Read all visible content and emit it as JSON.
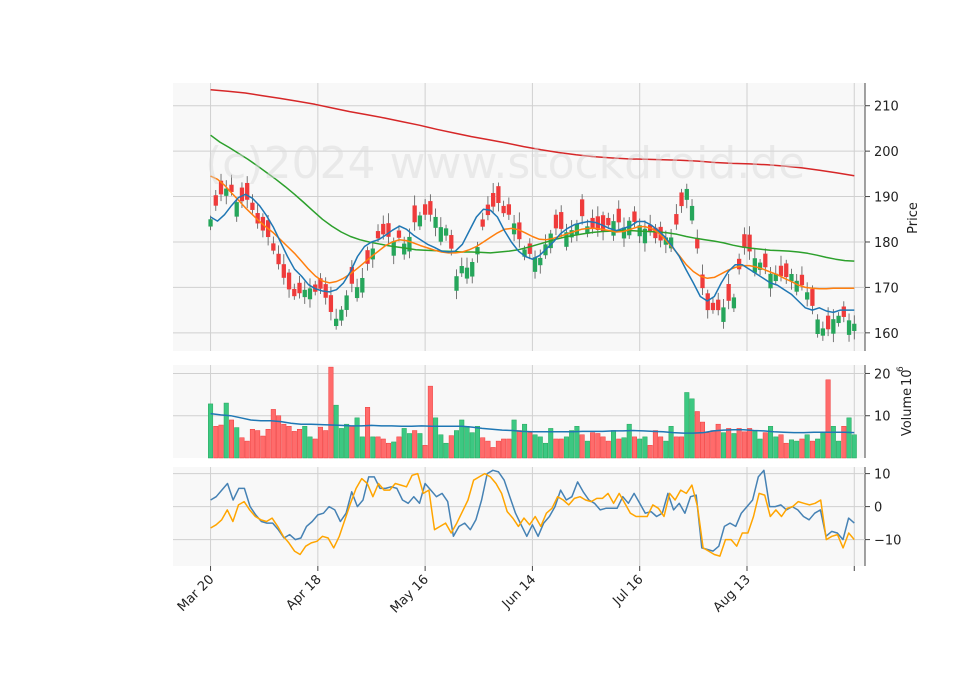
{
  "watermark": "(c)2024 www.stockdroid.de",
  "colors": {
    "up": "#26a65b",
    "down": "#ef3b3b",
    "up_fill": "#3cc882",
    "down_fill": "#ff6b6b",
    "ma_short": "#1f77b4",
    "ma_mid": "#ff7f0e",
    "ma_long": "#2ca02c",
    "ma_200": "#d62728",
    "vol_ma": "#1f77b4",
    "osc_fast": "#4682b4",
    "osc_slow": "#ffa500",
    "panel_bg": "#f8f8f8",
    "grid": "#d0d0d0"
  },
  "chart_data": [
    {
      "type": "candlestick",
      "panel": "price",
      "ylabel": "Price",
      "ylim": [
        156,
        215
      ],
      "yticks": [
        160,
        170,
        180,
        190,
        200,
        210
      ],
      "x_tick_labels": [
        "Mar 20",
        "Apr 18",
        "May 16",
        "Jun 14",
        "Jul 16",
        "Aug 13"
      ],
      "x_tick_index": [
        0,
        20,
        40,
        60,
        80,
        100
      ],
      "x_range": [
        -7,
        122
      ],
      "close_path": [
        185,
        189,
        192,
        191,
        188,
        190,
        187,
        183,
        182,
        178,
        174,
        170,
        168,
        169,
        170,
        169,
        170,
        165,
        163,
        166,
        171,
        170,
        173,
        178,
        181,
        182,
        180,
        181,
        179,
        184,
        186,
        186,
        186,
        183,
        183,
        172,
        175,
        174,
        178,
        184,
        187,
        189,
        186,
        186,
        181,
        178,
        177,
        176,
        180,
        183,
        183,
        182,
        183,
        186,
        183,
        183,
        182,
        184,
        185,
        183,
        185,
        184,
        183,
        182,
        180,
        181,
        181,
        186,
        192,
        187,
        172,
        165,
        165,
        165,
        167,
        168,
        179,
        178,
        176,
        175,
        173,
        173,
        172,
        173,
        171,
        170,
        166,
        162,
        160,
        163,
        164,
        163,
        162
      ],
      "ma_short": [
        185.5,
        184.6,
        186,
        188,
        189.8,
        190.5,
        189.6,
        188,
        185.8,
        183.2,
        180,
        176.8,
        174,
        172.5,
        170.6,
        169.7,
        169.2,
        169,
        169.5,
        171,
        173.5,
        176.8,
        179,
        180,
        180.5,
        181.5,
        182.6,
        183.5,
        182.8,
        181.5,
        180.5,
        179.5,
        178.8,
        178,
        177.8,
        178,
        179.5,
        182.5,
        185.5,
        187.2,
        187,
        185.5,
        182.5,
        180,
        178,
        176.8,
        176.2,
        177,
        178.5,
        180,
        181.8,
        183,
        183.8,
        184.2,
        184.5,
        184.3,
        183.7,
        183,
        182.5,
        183,
        183.5,
        184.5,
        184.5,
        183.7,
        182.5,
        181,
        179,
        176.8,
        173.8,
        171,
        168,
        167,
        168,
        171,
        173.5,
        175,
        175,
        174,
        173,
        172,
        171,
        170.5,
        169.5,
        168.5,
        167,
        165.5,
        165,
        165.5,
        164.8,
        164.5,
        165,
        165,
        165
      ],
      "ma_mid": [
        194.5,
        193.8,
        192.5,
        190.8,
        189.2,
        187.5,
        186,
        184.5,
        183.2,
        182,
        180.5,
        179,
        177.5,
        175.8,
        174,
        172.5,
        171.4,
        171,
        171.3,
        172,
        173,
        174.2,
        175.5,
        176.8,
        178,
        179.2,
        180,
        180.5,
        180.3,
        179.8,
        179.2,
        178.7,
        178.2,
        177.8,
        177.6,
        177.6,
        177.8,
        178.3,
        179,
        180,
        181,
        182,
        182.8,
        183,
        182.7,
        182,
        181.2,
        180.6,
        180.5,
        180.8,
        181.3,
        181.8,
        182.3,
        182.8,
        183,
        183,
        182.8,
        182.5,
        182.2,
        182.3,
        182.8,
        183.3,
        183.4,
        183,
        182,
        180.5,
        178.8,
        177,
        175,
        173.5,
        172.5,
        172,
        172.2,
        173,
        173.8,
        174.4,
        174.8,
        174.8,
        174.5,
        174,
        173.4,
        172.8,
        172,
        171.3,
        170.5,
        170,
        169.8,
        169.7,
        169.7,
        169.8,
        169.8,
        169.8,
        169.8
      ],
      "ma_long": [
        203.5,
        202,
        200.8,
        199.5,
        198.2,
        196.8,
        195.3,
        193.8,
        192.2,
        190.5,
        188.7,
        186.8,
        185,
        183.5,
        182.2,
        181.2,
        180.5,
        180,
        179.6,
        179.2,
        178.9,
        178.6,
        178.3,
        178.2,
        178.1,
        178,
        177.9,
        177.8,
        177.8,
        177.7,
        177.6,
        177.8,
        178,
        178.3,
        178.8,
        179.4,
        180,
        180.6,
        181.1,
        181.5,
        181.8,
        182.1,
        182.3,
        182.4,
        182.5,
        182.5,
        182.4,
        182.3,
        182.2,
        182,
        181.7,
        181.2,
        180.8,
        180.5,
        180.2,
        179.8,
        179.3,
        178.9,
        178.6,
        178.4,
        178.2,
        178.1,
        178,
        177.8,
        177.5,
        177.1,
        176.6,
        176.2,
        175.9,
        175.8
      ],
      "ma_200": [
        213.5,
        213.2,
        212.8,
        212.2,
        211.6,
        211,
        210.3,
        209.5,
        208.7,
        208,
        207.3,
        206.5,
        205.7,
        204.8,
        204,
        203.2,
        202.5,
        201.8,
        201,
        200.3,
        199.7,
        199.2,
        198.8,
        198.5,
        198.3,
        198.2,
        198.1,
        198,
        197.8,
        197.5,
        197.3,
        197.2,
        197,
        196.7,
        196.3,
        195.8,
        195.2,
        194.6
      ]
    },
    {
      "type": "bar",
      "panel": "volume",
      "ylabel": "Volume",
      "ylabel_exponent": "10^6",
      "ylim": [
        0,
        22
      ],
      "yticks": [
        10,
        20
      ],
      "values": [
        12.8,
        7.5,
        7.8,
        13,
        9,
        7.2,
        4.8,
        4,
        6.8,
        6.5,
        5.2,
        6.8,
        11.5,
        10,
        8,
        7.5,
        6.3,
        6.8,
        7.5,
        5,
        4.5,
        7.3,
        6.5,
        21.5,
        12.5,
        7,
        8,
        7.5,
        9.5,
        5,
        12,
        5,
        5,
        4.5,
        3.5,
        3.8,
        5,
        7,
        5.8,
        6.5,
        5.8,
        3,
        17,
        9.5,
        5.5,
        3.5,
        5.3,
        6.5,
        9,
        7.5,
        6,
        7.5,
        4.8,
        4,
        2.5,
        4,
        4.5,
        4.5,
        9,
        6.5,
        8,
        6,
        5.5,
        5,
        3.5,
        7,
        4.5,
        4.5,
        5,
        6.5,
        7.5,
        5.5,
        4,
        6,
        5.8,
        5,
        4,
        6.5,
        4.5,
        4.8,
        8,
        5,
        4.5,
        5,
        3,
        6.5,
        5,
        4,
        7.5,
        5,
        5,
        15.5,
        14,
        11,
        8.5,
        6,
        6.5,
        8,
        6,
        7,
        5.8,
        7,
        6.2,
        7,
        6.5,
        4.5,
        6,
        7.5,
        5,
        5.5,
        3.5,
        4.3,
        4,
        4.5,
        5.5,
        4,
        4.5,
        6,
        18.5,
        7.5,
        4,
        7.5,
        9.5,
        5.5
      ],
      "direction": [
        1,
        0,
        0,
        1,
        0,
        1,
        0,
        0,
        0,
        0,
        0,
        0,
        0,
        0,
        0,
        0,
        0,
        0,
        1,
        1,
        0,
        0,
        0,
        0,
        1,
        1,
        1,
        0,
        1,
        1,
        0,
        1,
        0,
        0,
        0,
        1,
        0,
        1,
        1,
        0,
        1,
        0,
        0,
        1,
        1,
        1,
        0,
        1,
        1,
        1,
        1,
        1,
        0,
        0,
        0,
        0,
        0,
        0,
        1,
        0,
        1,
        0,
        1,
        1,
        1,
        1,
        0,
        0,
        1,
        1,
        1,
        0,
        1,
        0,
        0,
        0,
        0,
        1,
        0,
        1,
        1,
        0,
        1,
        1,
        0,
        0,
        0,
        1,
        1,
        0,
        0,
        1,
        1,
        0,
        0,
        0,
        0,
        0,
        1,
        0,
        1,
        0,
        0,
        0,
        1,
        1,
        0,
        1,
        1,
        0,
        0,
        1,
        1,
        0,
        1,
        0,
        1,
        1,
        0,
        1,
        1,
        0,
        1,
        1
      ],
      "ma": [
        10.5,
        10.2,
        10,
        9.5,
        9,
        8.8,
        8.8,
        8.6,
        8.2,
        8,
        8,
        7.9,
        7.8,
        7.7,
        7.6,
        7.6,
        7.7,
        7.6,
        7.6,
        7.5,
        7.5,
        7.6,
        7.5,
        7.5,
        7.5,
        7.5,
        7.3,
        7,
        6.8,
        6.6,
        6.5,
        6.3,
        6.2,
        6.2,
        6.2,
        6.2,
        6.2,
        6.3,
        6.3,
        6.3,
        6.4,
        6.4,
        6.5,
        6.4,
        6.3,
        6.2,
        6,
        5.9,
        5.9,
        6,
        6.4,
        6.6,
        6.7,
        6.7,
        6.5,
        6.4,
        6.2,
        6.1,
        6,
        6,
        6.1,
        6.1,
        6.1,
        6.1,
        6
      ]
    },
    {
      "type": "line",
      "panel": "oscillator",
      "ylim": [
        -18,
        12
      ],
      "yticks": [
        -10,
        0,
        10
      ],
      "series": [
        {
          "values": [
            2,
            3,
            5,
            7,
            2,
            5.5,
            5.5,
            0,
            -2.5,
            -4.5,
            -5,
            -5,
            -7,
            -9.5,
            -8.5,
            -10,
            -9.5,
            -6,
            -4.5,
            -2.5,
            -2,
            0,
            -1,
            -4.5,
            -2,
            4.5,
            0,
            2,
            9,
            9,
            5.5,
            5.5,
            6,
            5.5,
            2,
            1,
            3,
            1,
            7,
            5,
            3,
            4,
            1.5,
            -9,
            -6,
            -5,
            -7,
            -4,
            2,
            10,
            11,
            10.5,
            8,
            3,
            -2,
            -5.5,
            -9,
            -5.5,
            -9,
            -5,
            -3,
            0,
            5,
            2,
            3,
            7.5,
            4.5,
            2,
            1,
            -1,
            -0.5,
            -0.5,
            -0.5,
            3,
            1,
            4,
            1,
            -2,
            -1.5,
            -3,
            -2,
            4,
            -1,
            1,
            -2,
            3,
            3.5,
            -12.5,
            -13,
            -13.5,
            -12,
            -6,
            -5,
            -6,
            -2,
            0,
            2,
            9,
            11,
            0,
            0,
            0.5,
            -1,
            0,
            -1,
            -3,
            -4,
            -2,
            -1,
            -9,
            -7.5,
            -8,
            -10,
            -3.5,
            -5
          ],
          "color_key": "osc_fast"
        },
        {
          "values": [
            -6.5,
            -5.5,
            -4,
            -1,
            -4.5,
            0.5,
            1.5,
            -1,
            -3,
            -4,
            -4.5,
            -3.5,
            -6,
            -9,
            -11,
            -13.5,
            -14.5,
            -12,
            -11,
            -10.5,
            -9,
            -9.5,
            -12.5,
            -9,
            -4,
            1,
            5.5,
            8.5,
            7,
            3,
            7,
            5,
            5,
            7,
            6.5,
            6,
            9.5,
            10,
            4,
            5,
            -7,
            -6,
            -5,
            -8,
            -5,
            -1.5,
            2,
            8,
            9,
            10,
            9,
            7,
            4,
            -1.5,
            -3.5,
            -6,
            -3.5,
            -5.5,
            -3,
            -6,
            -2,
            -0.5,
            3,
            2,
            0.5,
            2.5,
            3,
            2,
            1.5,
            2.5,
            2.5,
            4,
            1,
            4,
            1,
            -2,
            -3,
            -3,
            -3,
            0.5,
            -0.5,
            -3,
            4,
            2,
            5,
            4,
            6.5,
            0,
            -12.5,
            -13.5,
            -14.5,
            -15,
            -10,
            -10,
            -12,
            -8,
            -8,
            -3,
            4,
            3.5,
            -3,
            -1,
            -3,
            -0.5,
            0,
            1.5,
            1,
            0.5,
            1,
            2,
            -10,
            -9,
            -8.5,
            -12.5,
            -8,
            -10
          ],
          "color_key": "osc_slow"
        }
      ]
    }
  ]
}
